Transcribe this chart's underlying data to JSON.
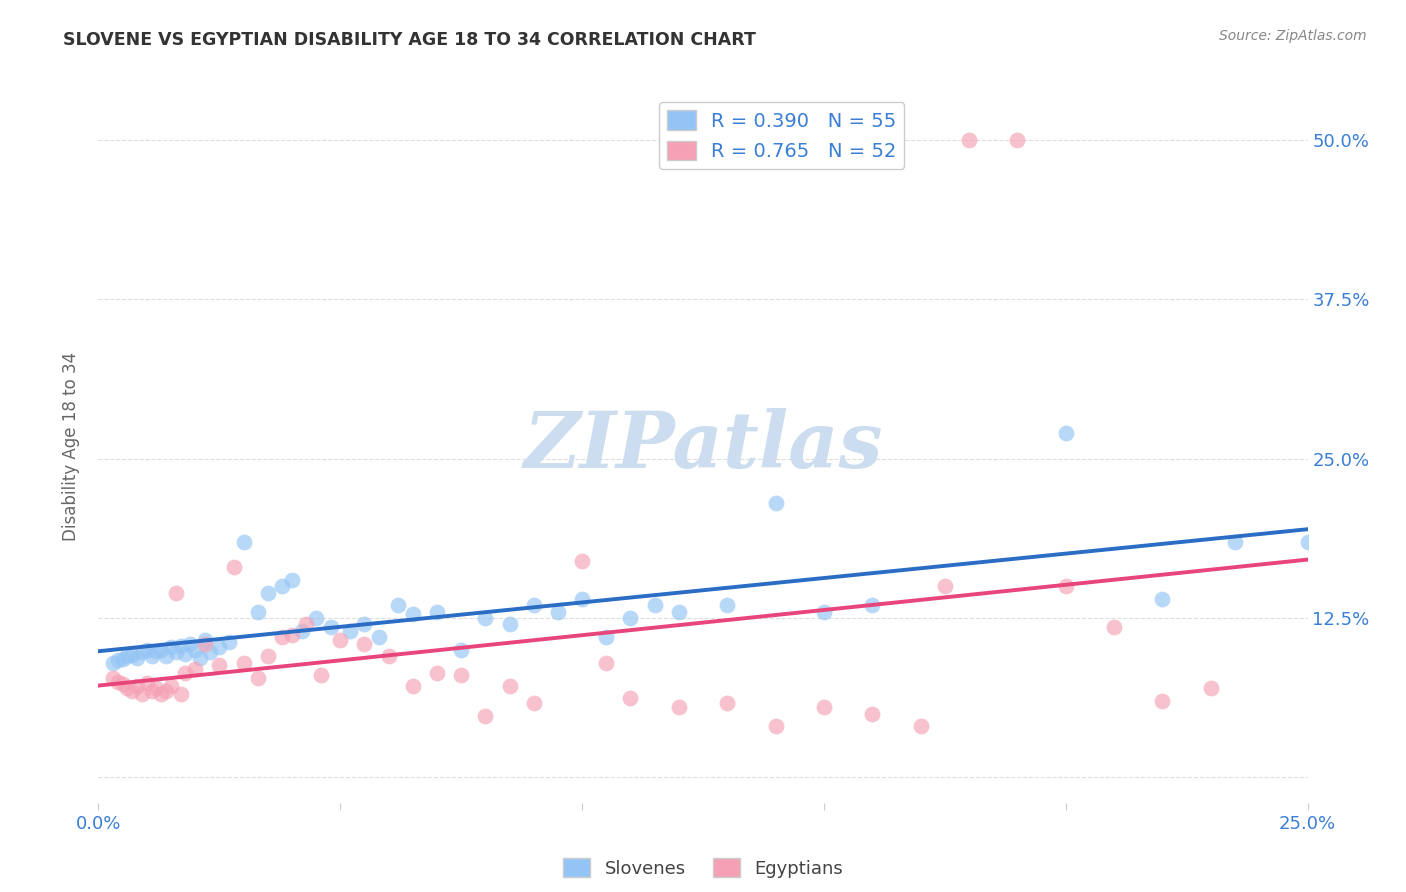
{
  "title": "SLOVENE VS EGYPTIAN DISABILITY AGE 18 TO 34 CORRELATION CHART",
  "source": "Source: ZipAtlas.com",
  "ylabel": "Disability Age 18 to 34",
  "xlim": [
    0.0,
    0.25
  ],
  "ylim": [
    -0.02,
    0.54
  ],
  "yticks": [
    0.0,
    0.125,
    0.25,
    0.375,
    0.5
  ],
  "ytick_labels": [
    "",
    "12.5%",
    "25.0%",
    "37.5%",
    "50.0%"
  ],
  "xtick_vals": [
    0.0,
    0.05,
    0.1,
    0.15,
    0.2,
    0.25
  ],
  "xtick_labels": [
    "0.0%",
    "",
    "",
    "",
    "",
    "25.0%"
  ],
  "slovene_R": 0.39,
  "slovene_N": 55,
  "egyptian_R": 0.765,
  "egyptian_N": 52,
  "slovene_color": "#93C4F5",
  "egyptian_color": "#F5A0B5",
  "slovene_line_color": "#2B6CC4",
  "egyptian_line_color": "#E8457A",
  "slovene_scatter_x": [
    0.003,
    0.004,
    0.005,
    0.006,
    0.007,
    0.008,
    0.009,
    0.01,
    0.011,
    0.012,
    0.013,
    0.014,
    0.015,
    0.016,
    0.017,
    0.018,
    0.019,
    0.02,
    0.021,
    0.022,
    0.023,
    0.025,
    0.027,
    0.03,
    0.033,
    0.035,
    0.038,
    0.04,
    0.042,
    0.045,
    0.048,
    0.052,
    0.055,
    0.058,
    0.062,
    0.065,
    0.07,
    0.075,
    0.08,
    0.085,
    0.09,
    0.095,
    0.1,
    0.105,
    0.11,
    0.115,
    0.12,
    0.13,
    0.14,
    0.15,
    0.16,
    0.2,
    0.22,
    0.235,
    0.25
  ],
  "slovene_scatter_y": [
    0.09,
    0.092,
    0.093,
    0.095,
    0.096,
    0.094,
    0.098,
    0.1,
    0.095,
    0.099,
    0.1,
    0.095,
    0.102,
    0.098,
    0.103,
    0.097,
    0.105,
    0.1,
    0.094,
    0.108,
    0.098,
    0.102,
    0.106,
    0.185,
    0.13,
    0.145,
    0.15,
    0.155,
    0.115,
    0.125,
    0.118,
    0.115,
    0.12,
    0.11,
    0.135,
    0.128,
    0.13,
    0.1,
    0.125,
    0.12,
    0.135,
    0.13,
    0.14,
    0.11,
    0.125,
    0.135,
    0.13,
    0.135,
    0.215,
    0.13,
    0.135,
    0.27,
    0.14,
    0.185,
    0.185
  ],
  "egyptian_scatter_x": [
    0.003,
    0.004,
    0.005,
    0.006,
    0.007,
    0.008,
    0.009,
    0.01,
    0.011,
    0.012,
    0.013,
    0.014,
    0.015,
    0.016,
    0.017,
    0.018,
    0.02,
    0.022,
    0.025,
    0.028,
    0.03,
    0.033,
    0.035,
    0.038,
    0.04,
    0.043,
    0.046,
    0.05,
    0.055,
    0.06,
    0.065,
    0.07,
    0.075,
    0.08,
    0.085,
    0.09,
    0.1,
    0.105,
    0.11,
    0.12,
    0.13,
    0.14,
    0.15,
    0.16,
    0.17,
    0.175,
    0.18,
    0.19,
    0.2,
    0.21,
    0.22,
    0.23
  ],
  "egyptian_scatter_y": [
    0.078,
    0.075,
    0.073,
    0.07,
    0.068,
    0.072,
    0.065,
    0.074,
    0.068,
    0.07,
    0.065,
    0.068,
    0.072,
    0.145,
    0.065,
    0.082,
    0.085,
    0.105,
    0.088,
    0.165,
    0.09,
    0.078,
    0.095,
    0.11,
    0.112,
    0.12,
    0.08,
    0.108,
    0.105,
    0.095,
    0.072,
    0.082,
    0.08,
    0.048,
    0.072,
    0.058,
    0.17,
    0.09,
    0.062,
    0.055,
    0.058,
    0.04,
    0.055,
    0.05,
    0.04,
    0.15,
    0.5,
    0.5,
    0.15,
    0.118,
    0.06,
    0.07
  ],
  "watermark_text": "ZIPatlas",
  "watermark_color": "#CCDDEF",
  "background_color": "#FFFFFF",
  "grid_color": "#DDDDDD",
  "title_color": "#333333",
  "source_color": "#888888",
  "tick_label_color": "#3A7FD5",
  "ylabel_color": "#666666"
}
